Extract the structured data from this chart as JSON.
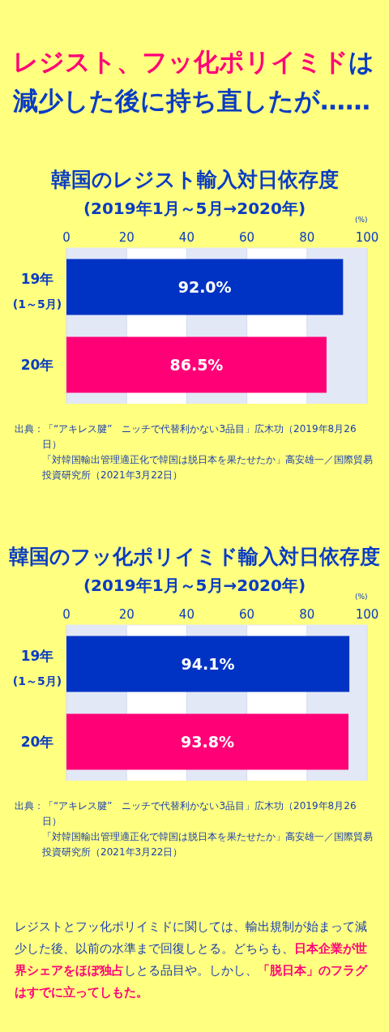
{
  "chart_data": [
    {
      "type": "other",
      "annotations": [
        "レジスト、フッ化ポリイミド",
        "は",
        "減少した後に持ち直したが……"
      ],
      "colors": [
        "#ff0077",
        "#0a3cc2",
        "#0a3cc2"
      ]
    },
    {
      "type": "bar",
      "orientation": "horizontal",
      "title": "韓国のレジスト輸入対日依存度",
      "subtitle": "(2019年1月～5月→2020年)",
      "xlabel": "(%)",
      "categories": [
        "19年$_{(1～5月)}$",
        "20年"
      ],
      "values": [
        92.0,
        86.5
      ],
      "colors": [
        "#0033c4",
        "#ff0077"
      ],
      "value_labels": [
        "92.0%",
        "86.5%"
      ],
      "xlim": [
        0,
        100
      ],
      "xticks": [
        0,
        20,
        40,
        60,
        80,
        100
      ],
      "grid": "x",
      "annotations": [
        "出典：「“アキレス腱”　ニッチで代替利かない3品目」広木功（2019年8月26日）",
        "「対韓国輸出管理適正化で韓国は脱日本を果たせたか」高安雄一／国際貿易投資研究所（2021年3月22日）"
      ]
    },
    {
      "type": "bar",
      "orientation": "horizontal",
      "title": "韓国のフッ化ポリイミド輸入対日依存度",
      "subtitle": "(2019年1月～5月→2020年)",
      "xlabel": "(%)",
      "categories": [
        "19年$_{(1～5月)}$",
        "20年"
      ],
      "values": [
        94.1,
        93.8
      ],
      "colors": [
        "#0033c4",
        "#ff0077"
      ],
      "value_labels": [
        "94.1%",
        "93.8%"
      ],
      "xlim": [
        0,
        100
      ],
      "xticks": [
        0,
        20,
        40,
        60,
        80,
        100
      ],
      "grid": "x",
      "annotations": [
        "出典：「“アキレス腱”　ニッチで代替利かない3品目」広木功（2019年8月26日）",
        "「対韓国輸出管理適正化で韓国は脱日本を果たせたか」高安雄一／国際貿易投資研究所（2021年3月22日）"
      ]
    },
    {
      "type": "other",
      "annotations": [
        "レジストとフッ化ポリイミドに関しては、輸出規制が始まって減少した後、以前の水準まで回復しとる。どちらも、",
        "日本企業が世界シェアをほぼ独占",
        "しとる品目や。しかし、",
        "「脱日本」のフラグはすでに立ってしもた。"
      ],
      "colors": [
        "#1a3fb0",
        "#ff0077",
        "#1a3fb0",
        "#ff0077"
      ]
    }
  ]
}
